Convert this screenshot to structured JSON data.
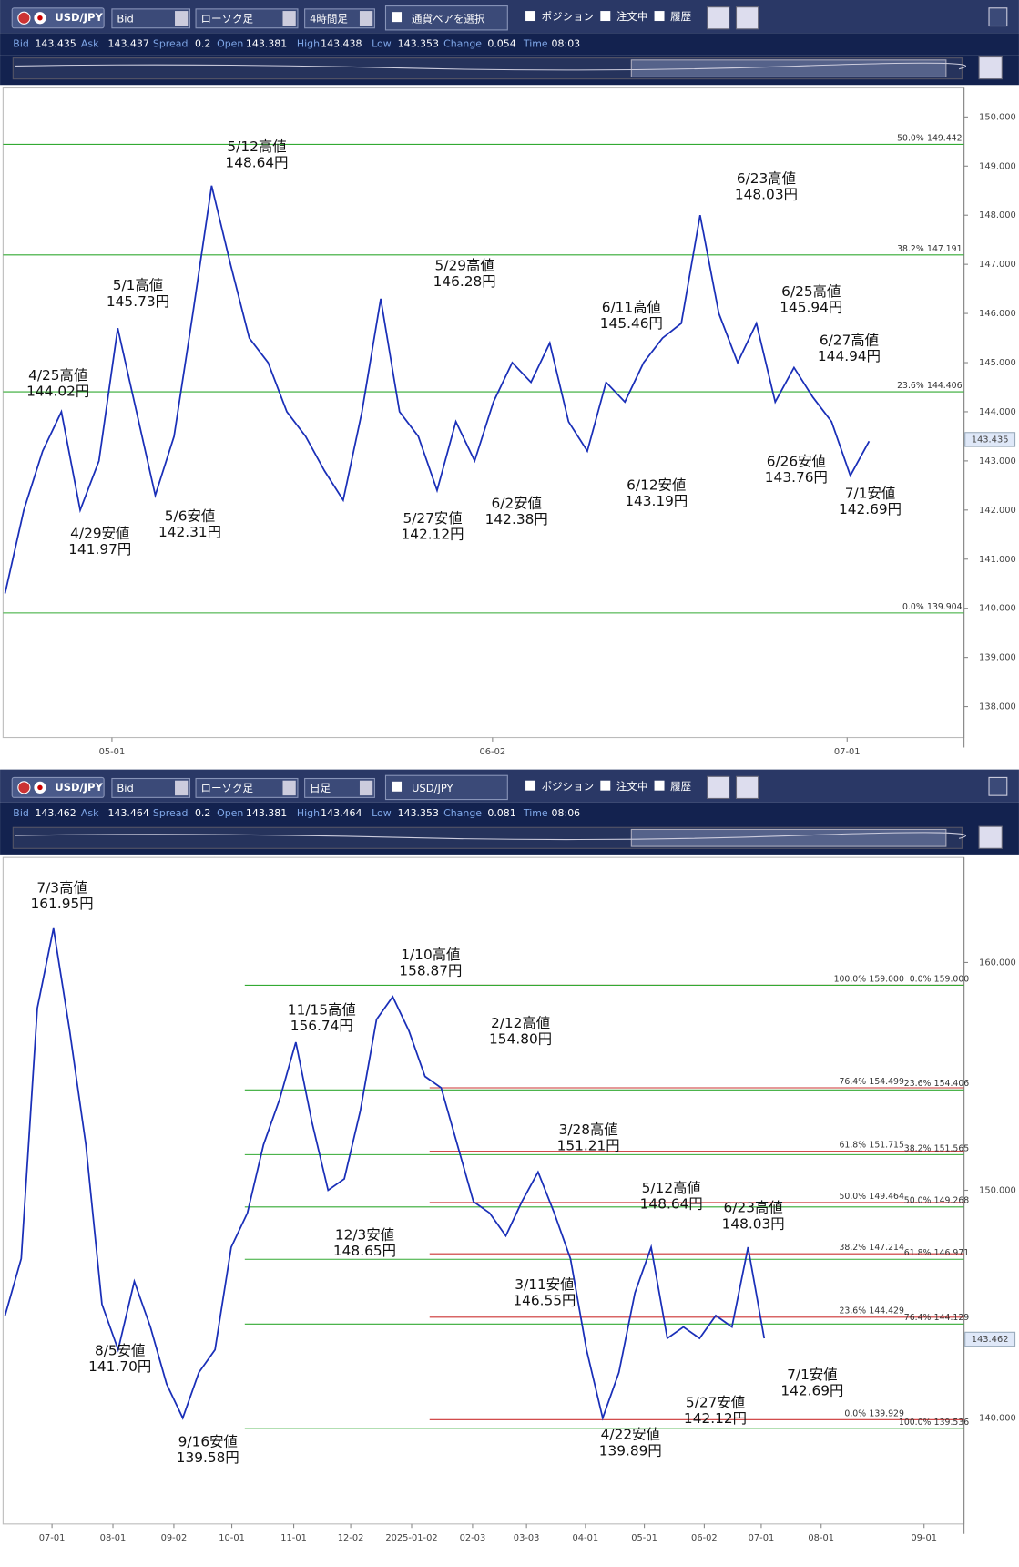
{
  "panels": [
    {
      "toolbar": {
        "pair": "USD/JPY",
        "price_type": "Bid",
        "chart_type": "ローソク足",
        "timeframe": "4時間足",
        "pair_select": "通貨ペアを選択",
        "position": "ポジション",
        "orders": "注文中",
        "history": "履歴"
      },
      "info": [
        {
          "label": "Bid",
          "value": 143.435
        },
        {
          "label": "Ask",
          "value": 143.437
        },
        {
          "label": "Spread",
          "value": 0.2
        },
        {
          "label": "Open",
          "value": 143.381
        },
        {
          "label": "High",
          "value": 143.438
        },
        {
          "label": "Low",
          "value": 143.353
        },
        {
          "label": "Change",
          "value": 0.054
        },
        {
          "label": "Time",
          "value": "08:03"
        }
      ],
      "chart": {
        "type": "line",
        "ylim": [
          137.37,
          150.59
        ],
        "yticks": [
          {
            "value": 138,
            "label": "138.000"
          },
          {
            "value": 139,
            "label": "139.000"
          },
          {
            "value": 140,
            "label": "140.000"
          },
          {
            "value": 141,
            "label": "141.000"
          },
          {
            "value": 142,
            "label": "142.000"
          },
          {
            "value": 143,
            "label": "143.000"
          },
          {
            "value": 144,
            "label": "144.000"
          },
          {
            "value": 145,
            "label": "145.000"
          },
          {
            "value": 146,
            "label": "146.000"
          },
          {
            "value": 147,
            "label": "147.000"
          },
          {
            "value": 148,
            "label": "148.000"
          },
          {
            "value": 149,
            "label": "149.000"
          },
          {
            "value": 150,
            "label": "150.000"
          }
        ],
        "categories": [
          "05-01",
          "06-02",
          "07-01"
        ],
        "current_price": 143.435,
        "fib_levels": [
          {
            "pct": "50.0%",
            "level": 149.442
          },
          {
            "pct": "38.2%",
            "level": 147.191
          },
          {
            "pct": "23.6%",
            "level": 144.406
          },
          {
            "pct": "0.0%",
            "level": 139.904
          }
        ],
        "fib_levels_b": [],
        "series": [
          {
            "name": "USD/JPY",
            "color": "#1a2fb8",
            "values": [
              140.3,
              142.0,
              143.2,
              144.0,
              142.0,
              143.0,
              145.7,
              144.0,
              142.3,
              143.5,
              146.0,
              148.6,
              147.0,
              145.5,
              145.0,
              144.0,
              143.5,
              142.8,
              142.2,
              144.0,
              146.3,
              144.0,
              143.5,
              142.4,
              143.8,
              143.0,
              144.2,
              145.0,
              144.6,
              145.4,
              143.8,
              143.2,
              144.6,
              144.2,
              145.0,
              145.5,
              145.8,
              148.0,
              146.0,
              145.0,
              145.8,
              144.2,
              144.9,
              144.3,
              143.8,
              142.7,
              143.4
            ]
          }
        ],
        "annotations": [
          {
            "date": "5/12高値",
            "price": "148.64円"
          },
          {
            "date": "5/1高値",
            "price": "145.73円"
          },
          {
            "date": "4/25高値",
            "price": "144.02円"
          },
          {
            "date": "4/29安値",
            "price": "141.97円"
          },
          {
            "date": "5/6安値",
            "price": "142.31円"
          },
          {
            "date": "5/29高値",
            "price": "146.28円"
          },
          {
            "date": "5/27安値",
            "price": "142.12円"
          },
          {
            "date": "6/2安値",
            "price": "142.38円"
          },
          {
            "date": "6/11高値",
            "price": "145.46円"
          },
          {
            "date": "6/12安値",
            "price": "143.19円"
          },
          {
            "date": "6/23高値",
            "price": "148.03円"
          },
          {
            "date": "6/25高値",
            "price": "145.94円"
          },
          {
            "date": "6/27高値",
            "price": "144.94円"
          },
          {
            "date": "6/26安値",
            "price": "143.76円"
          },
          {
            "date": "7/1安値",
            "price": "142.69円"
          }
        ]
      }
    },
    {
      "toolbar": {
        "pair": "USD/JPY",
        "price_type": "Bid",
        "chart_type": "ローソク足",
        "timeframe": "日足",
        "pair_select": "USD/JPY",
        "position": "ポジション",
        "orders": "注文中",
        "history": "履歴"
      },
      "info": [
        {
          "label": "Bid",
          "value": 143.462
        },
        {
          "label": "Ask",
          "value": 143.464
        },
        {
          "label": "Spread",
          "value": 0.2
        },
        {
          "label": "Open",
          "value": 143.381
        },
        {
          "label": "High",
          "value": 143.464
        },
        {
          "label": "Low",
          "value": 143.353
        },
        {
          "label": "Change",
          "value": 0.081
        },
        {
          "label": "Time",
          "value": "08:06"
        }
      ],
      "chart": {
        "type": "line",
        "ylim": [
          135.35,
          164.61
        ],
        "yticks": [
          {
            "value": 140,
            "label": "140.000"
          },
          {
            "value": 150,
            "label": "150.000"
          },
          {
            "value": 160,
            "label": "160.000"
          }
        ],
        "categories": [
          "07-01",
          "08-01",
          "09-02",
          "10-01",
          "11-01",
          "12-02",
          "2025-01-02",
          "02-03",
          "03-03",
          "04-01",
          "05-01",
          "06-02",
          "07-01",
          "08-01",
          "09-01"
        ],
        "current_price": 143.462,
        "fib_levels": [
          {
            "pct": "100.0%",
            "level": {
              "value": 159,
              "label": "159.000"
            }
          },
          {
            "pct": "76.4%",
            "level": 154.499
          },
          {
            "pct": "61.8%",
            "level": 151.715
          },
          {
            "pct": "50.0%",
            "level": 149.464
          },
          {
            "pct": "38.2%",
            "level": 147.214
          },
          {
            "pct": "23.6%",
            "level": 144.429
          },
          {
            "pct": "0.0%",
            "level": 139.929
          }
        ],
        "fib_levels_b": [
          {
            "pct": "0.0%",
            "level": {
              "value": 159,
              "label": "159.000"
            }
          },
          {
            "pct": "23.6%",
            "level": 154.406
          },
          {
            "pct": "38.2%",
            "level": 151.565
          },
          {
            "pct": "50.0%",
            "level": 149.268
          },
          {
            "pct": "61.8%",
            "level": 146.971
          },
          {
            "pct": "76.4%",
            "level": 144.129
          },
          {
            "pct": "100.0%",
            "level": 139.536
          }
        ],
        "series": [
          {
            "name": "USD/JPY",
            "color": "#1a2fb8",
            "values": [
              144.5,
              147.0,
              158.0,
              161.5,
              157.0,
              152.0,
              145.0,
              143.0,
              146.0,
              144.0,
              141.5,
              140.0,
              142.0,
              143.0,
              147.5,
              149.0,
              152.0,
              154.0,
              156.5,
              153.0,
              150.0,
              150.5,
              153.5,
              157.5,
              158.5,
              157.0,
              155.0,
              154.5,
              152.0,
              149.5,
              149.0,
              148.0,
              149.5,
              150.8,
              149.0,
              147.0,
              143.0,
              140.0,
              142.0,
              145.5,
              147.5,
              143.5,
              144.0,
              143.5,
              144.5,
              144.0,
              147.5,
              143.5
            ]
          }
        ],
        "annotations": [
          {
            "date": "7/3高値",
            "price": "161.95円"
          },
          {
            "date": "1/10高値",
            "price": "158.87円"
          },
          {
            "date": "11/15高値",
            "price": "156.74円"
          },
          {
            "date": "2/12高値",
            "price": "154.80円"
          },
          {
            "date": "3/28高値",
            "price": "151.21円"
          },
          {
            "date": "5/12高値",
            "price": "148.64円"
          },
          {
            "date": "6/23高値",
            "price": "148.03円"
          },
          {
            "date": "12/3安値",
            "price": "148.65円"
          },
          {
            "date": "3/11安値",
            "price": "146.55円"
          },
          {
            "date": "8/5安値",
            "price": "141.70円"
          },
          {
            "date": "7/1安値",
            "price": "142.69円"
          },
          {
            "date": "5/27安値",
            "price": "142.12円"
          },
          {
            "date": "4/22安値",
            "price": "139.89円"
          },
          {
            "date": "9/16安値",
            "price": "139.58円"
          }
        ]
      }
    }
  ]
}
